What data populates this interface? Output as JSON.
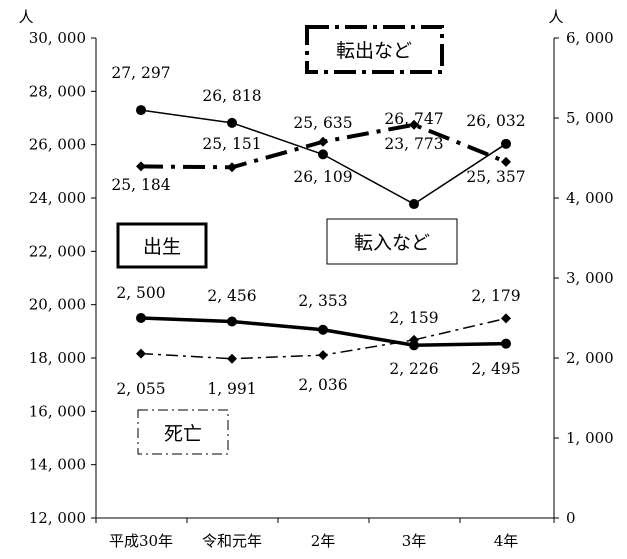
{
  "chart_data": {
    "type": "line",
    "categories": [
      "平成30年",
      "令和元年",
      "2年",
      "3年",
      "4年"
    ],
    "left_axis": {
      "unit": "人",
      "min": 12000,
      "max": 30000,
      "step": 2000,
      "ticks": [
        "12, 000",
        "14, 000",
        "16, 000",
        "18, 000",
        "20, 000",
        "22, 000",
        "24, 000",
        "26, 000",
        "28, 000",
        "30, 000"
      ]
    },
    "right_axis": {
      "unit": "人",
      "min": 0,
      "max": 6000,
      "step": 1000,
      "ticks": [
        "0",
        "1, 000",
        "2, 000",
        "3, 000",
        "4, 000",
        "5, 000",
        "6, 000"
      ]
    },
    "grid": false,
    "series": [
      {
        "name": "転入など",
        "axis": "left",
        "style": "solid-thin",
        "marker": "circle",
        "values": [
          27297,
          26818,
          25635,
          23773,
          26032
        ],
        "labels": [
          "27, 297",
          "26, 818",
          "25, 635",
          "23, 773",
          "26, 032"
        ]
      },
      {
        "name": "転出など",
        "axis": "left",
        "style": "dashdot-thick",
        "marker": "diamond",
        "values": [
          25184,
          25151,
          26109,
          26747,
          25357
        ],
        "labels": [
          "25, 184",
          "25, 151",
          "26, 109",
          "26, 747",
          "25, 357"
        ]
      },
      {
        "name": "出生",
        "axis": "right",
        "style": "solid-thick",
        "marker": "circle",
        "values": [
          2500,
          2456,
          2353,
          2159,
          2179
        ],
        "labels": [
          "2, 500",
          "2, 456",
          "2, 353",
          "2, 159",
          "2, 179"
        ]
      },
      {
        "name": "死亡",
        "axis": "right",
        "style": "dashdot-thin",
        "marker": "diamond",
        "values": [
          2055,
          1991,
          2036,
          2226,
          2495
        ],
        "labels": [
          "2, 055",
          "1, 991",
          "2, 036",
          "2, 226",
          "2, 495"
        ]
      }
    ],
    "legend_boxes": [
      "転出など",
      "転入など",
      "出生",
      "死亡"
    ]
  }
}
